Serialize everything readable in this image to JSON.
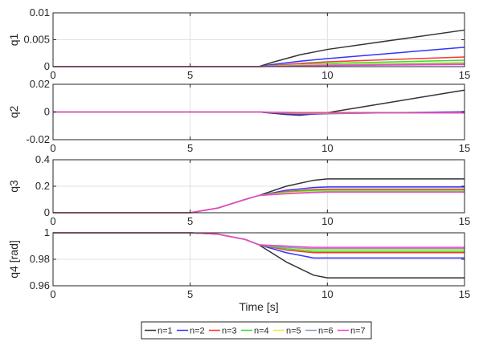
{
  "chart_data": [
    {
      "type": "line",
      "ylabel": "q1",
      "xlim": [
        0,
        15
      ],
      "ylim": [
        0,
        0.01
      ],
      "yticks": [
        "0",
        "0.005",
        "0.01"
      ],
      "ytick_values": [
        0,
        0.005,
        0.01
      ],
      "xticks": [
        "0",
        "5",
        "10",
        "15"
      ],
      "xtick_values": [
        0,
        5,
        10,
        15
      ],
      "grid": true,
      "x": [
        0,
        7.5,
        8,
        9,
        10,
        15
      ],
      "series": [
        {
          "name": "n=1",
          "values": [
            0,
            0,
            0.0008,
            0.0022,
            0.0032,
            0.0068
          ]
        },
        {
          "name": "n=2",
          "values": [
            0,
            0,
            0.0004,
            0.001,
            0.0015,
            0.0036
          ]
        },
        {
          "name": "n=3",
          "values": [
            0,
            0,
            0.0002,
            0.0006,
            0.0009,
            0.0018
          ]
        },
        {
          "name": "n=4",
          "values": [
            0,
            0,
            0.00015,
            0.0004,
            0.0006,
            0.0012
          ]
        },
        {
          "name": "n=5",
          "values": [
            0,
            0,
            0.0001,
            0.0003,
            0.0004,
            0.0008
          ]
        },
        {
          "name": "n=6",
          "values": [
            0,
            0,
            8e-05,
            0.0002,
            0.0003,
            0.0006
          ]
        },
        {
          "name": "n=7",
          "values": [
            0,
            0,
            5e-05,
            0.00015,
            0.0002,
            0.0004
          ]
        }
      ]
    },
    {
      "type": "line",
      "ylabel": "q2",
      "xlim": [
        0,
        15
      ],
      "ylim": [
        -0.02,
        0.02
      ],
      "yticks": [
        "-0.02",
        "0",
        "0.02"
      ],
      "ytick_values": [
        -0.02,
        0,
        0.02
      ],
      "xticks": [
        "0",
        "5",
        "10",
        "15"
      ],
      "xtick_values": [
        0,
        5,
        10,
        15
      ],
      "grid": true,
      "x": [
        0,
        7.5,
        8.5,
        9,
        10,
        15
      ],
      "series": [
        {
          "name": "n=1",
          "values": [
            0,
            0,
            -0.0018,
            -0.0024,
            -0.0005,
            0.0158
          ]
        },
        {
          "name": "n=2",
          "values": [
            0,
            0,
            -0.0012,
            -0.0018,
            -0.0012,
            0.0002
          ]
        },
        {
          "name": "n=3",
          "values": [
            0,
            0,
            -0.0008,
            -0.0012,
            -0.001,
            -0.0003
          ]
        },
        {
          "name": "n=4",
          "values": [
            0,
            0,
            -0.0006,
            -0.0009,
            -0.0008,
            -0.0004
          ]
        },
        {
          "name": "n=5",
          "values": [
            0,
            0,
            -0.0005,
            -0.0007,
            -0.0006,
            -0.0005
          ]
        },
        {
          "name": "n=6",
          "values": [
            0,
            0,
            -0.0004,
            -0.0006,
            -0.0005,
            -0.0006
          ]
        },
        {
          "name": "n=7",
          "values": [
            0,
            0,
            -0.0003,
            -0.0005,
            -0.0004,
            -0.0007
          ]
        }
      ]
    },
    {
      "type": "line",
      "ylabel": "q3",
      "xlim": [
        0,
        15
      ],
      "ylim": [
        0,
        0.4
      ],
      "yticks": [
        "0",
        "0.2",
        "0.4"
      ],
      "ytick_values": [
        0,
        0.2,
        0.4
      ],
      "xticks": [
        "0",
        "5",
        "10",
        "15"
      ],
      "xtick_values": [
        0,
        5,
        10,
        15
      ],
      "grid": true,
      "x": [
        0,
        5,
        6,
        7,
        7.5,
        8.5,
        9.5,
        10,
        15
      ],
      "series": [
        {
          "name": "n=1",
          "values": [
            0,
            0,
            0.035,
            0.1,
            0.13,
            0.2,
            0.245,
            0.255,
            0.255
          ]
        },
        {
          "name": "n=2",
          "values": [
            0,
            0,
            0.035,
            0.1,
            0.13,
            0.17,
            0.19,
            0.195,
            0.195
          ]
        },
        {
          "name": "n=3",
          "values": [
            0,
            0,
            0.035,
            0.1,
            0.13,
            0.16,
            0.175,
            0.178,
            0.178
          ]
        },
        {
          "name": "n=4",
          "values": [
            0,
            0,
            0.035,
            0.1,
            0.13,
            0.155,
            0.168,
            0.17,
            0.17
          ]
        },
        {
          "name": "n=5",
          "values": [
            0,
            0,
            0.035,
            0.1,
            0.13,
            0.15,
            0.16,
            0.162,
            0.162
          ]
        },
        {
          "name": "n=6",
          "values": [
            0,
            0,
            0.035,
            0.1,
            0.13,
            0.145,
            0.155,
            0.158,
            0.158
          ]
        },
        {
          "name": "n=7",
          "values": [
            0,
            0,
            0.035,
            0.1,
            0.13,
            0.143,
            0.152,
            0.155,
            0.155
          ]
        }
      ]
    },
    {
      "type": "line",
      "ylabel": "q4 [rad]",
      "xlabel": "Time [s]",
      "xlim": [
        0,
        15
      ],
      "ylim": [
        0.96,
        1
      ],
      "yticks": [
        "0.96",
        "0.98",
        "1"
      ],
      "ytick_values": [
        0.96,
        0.98,
        1
      ],
      "xticks": [
        "0",
        "5",
        "10",
        "15"
      ],
      "xtick_values": [
        0,
        5,
        10,
        15
      ],
      "grid": true,
      "x": [
        0,
        5,
        6,
        7,
        7.5,
        8.5,
        9.5,
        10,
        15
      ],
      "series": [
        {
          "name": "n=1",
          "values": [
            1,
            1,
            0.999,
            0.995,
            0.991,
            0.978,
            0.968,
            0.966,
            0.966
          ]
        },
        {
          "name": "n=2",
          "values": [
            1,
            1,
            0.999,
            0.995,
            0.991,
            0.985,
            0.981,
            0.981,
            0.981
          ]
        },
        {
          "name": "n=3",
          "values": [
            1,
            1,
            0.999,
            0.995,
            0.991,
            0.987,
            0.985,
            0.985,
            0.985
          ]
        },
        {
          "name": "n=4",
          "values": [
            1,
            1,
            0.999,
            0.995,
            0.991,
            0.988,
            0.986,
            0.986,
            0.986
          ]
        },
        {
          "name": "n=5",
          "values": [
            1,
            1,
            0.999,
            0.995,
            0.991,
            0.989,
            0.987,
            0.987,
            0.987
          ]
        },
        {
          "name": "n=6",
          "values": [
            1,
            1,
            0.999,
            0.995,
            0.991,
            0.989,
            0.988,
            0.988,
            0.988
          ]
        },
        {
          "name": "n=7",
          "values": [
            1,
            1,
            0.999,
            0.995,
            0.991,
            0.99,
            0.989,
            0.989,
            0.989
          ]
        }
      ]
    }
  ],
  "legend": {
    "placement": "bottom-center",
    "entries": [
      "n=1",
      "n=2",
      "n=3",
      "n=4",
      "n=5",
      "n=6",
      "n=7"
    ]
  },
  "colors": {
    "n=1": "#333333",
    "n=2": "#3333ff",
    "n=3": "#ff3333",
    "n=4": "#33dd33",
    "n=5": "#eeee33",
    "n=6": "#8899bb",
    "n=7": "#ee44cc",
    "axis": "#262626",
    "grid": "#e0e0e0"
  }
}
